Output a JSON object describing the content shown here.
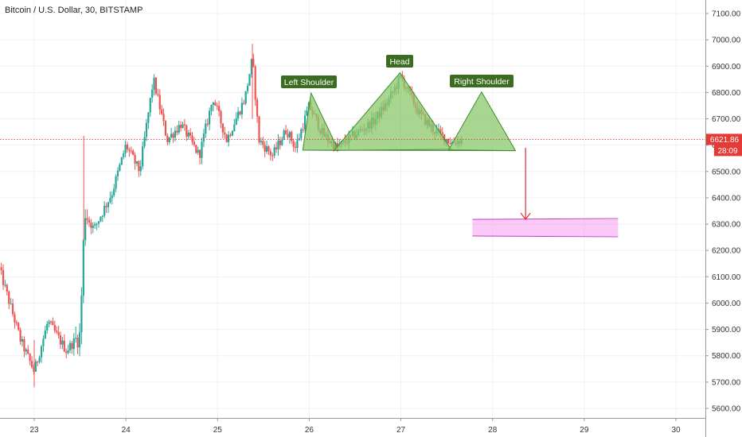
{
  "chart_data": {
    "type": "candlestick",
    "title": "Bitcoin / U.S. Dollar, 30, BITSTAMP",
    "xlabel": "",
    "ylabel": "",
    "x_ticks": [
      "23",
      "24",
      "25",
      "26",
      "27",
      "28",
      "29",
      "30"
    ],
    "y_ticks": [
      "5600.00",
      "5700.00",
      "5800.00",
      "5900.00",
      "6000.00",
      "6100.00",
      "6200.00",
      "6300.00",
      "6400.00",
      "6500.00",
      "6600.00",
      "6700.00",
      "6800.00",
      "6900.00",
      "7000.00",
      "7100.00"
    ],
    "ylim": [
      5570,
      7170
    ],
    "xlim": [
      22.62,
      30.25
    ],
    "grid": true,
    "current_price": 6621.86,
    "current_price_label": "6621.86",
    "countdown_label": "28:09",
    "colors": {
      "up": "#26a69a",
      "down": "#ef5350",
      "pattern_fill": "#8bc86b",
      "pattern_stroke": "#3d8c2b",
      "label_bg": "#3b6d20",
      "target_zone": "#f59df0",
      "target_stroke": "#c13fc1",
      "arrow": "#e53935",
      "price_line": "#e53935"
    },
    "anchors": [
      [
        22.62,
        6130,
        "flat"
      ],
      [
        22.85,
        5860,
        "down"
      ],
      [
        23.0,
        5740,
        "down"
      ],
      [
        23.15,
        5930,
        "up"
      ],
      [
        23.35,
        5820,
        "down"
      ],
      [
        23.5,
        5880,
        "up"
      ],
      [
        23.55,
        6350,
        "up"
      ],
      [
        23.65,
        6280,
        "down"
      ],
      [
        23.85,
        6420,
        "up"
      ],
      [
        24.0,
        6600,
        "up"
      ],
      [
        24.15,
        6500,
        "down"
      ],
      [
        24.3,
        6850,
        "up"
      ],
      [
        24.45,
        6620,
        "down"
      ],
      [
        24.6,
        6680,
        "up"
      ],
      [
        24.8,
        6560,
        "down"
      ],
      [
        24.95,
        6780,
        "up"
      ],
      [
        25.1,
        6620,
        "down"
      ],
      [
        25.3,
        6780,
        "up"
      ],
      [
        25.38,
        6930,
        "up"
      ],
      [
        25.45,
        6620,
        "down"
      ],
      [
        25.6,
        6560,
        "down"
      ],
      [
        25.75,
        6660,
        "up"
      ],
      [
        25.85,
        6590,
        "down"
      ],
      [
        26.0,
        6750,
        "up"
      ],
      [
        26.15,
        6640,
        "down"
      ],
      [
        26.3,
        6590,
        "down"
      ],
      [
        26.5,
        6640,
        "up"
      ],
      [
        26.7,
        6690,
        "up"
      ],
      [
        26.85,
        6760,
        "up"
      ],
      [
        27.0,
        6860,
        "up"
      ],
      [
        27.2,
        6720,
        "down"
      ],
      [
        27.35,
        6660,
        "down"
      ],
      [
        27.55,
        6610,
        "down"
      ],
      [
        27.68,
        6622,
        "up"
      ]
    ],
    "pattern": {
      "left_shoulder": {
        "label": "Left Shoulder",
        "points": [
          [
            25.93,
            6581
          ],
          [
            26.02,
            6798
          ],
          [
            26.32,
            6580
          ]
        ]
      },
      "head": {
        "label": "Head",
        "points": [
          [
            26.27,
            6580
          ],
          [
            26.99,
            6875
          ],
          [
            27.55,
            6584
          ]
        ]
      },
      "right_shoulder": {
        "label": "Right Shoulder",
        "points": [
          [
            27.52,
            6582
          ],
          [
            27.88,
            6802
          ],
          [
            28.25,
            6579
          ]
        ]
      },
      "neckline": [
        [
          25.93,
          6581
        ],
        [
          28.25,
          6579
        ]
      ]
    },
    "target_zone": {
      "x_start": 27.78,
      "x_end": 29.37,
      "y_low": 6255,
      "y_high": 6318
    },
    "arrow": {
      "x": 28.36,
      "y_from": 6590,
      "y_to": 6318
    }
  }
}
